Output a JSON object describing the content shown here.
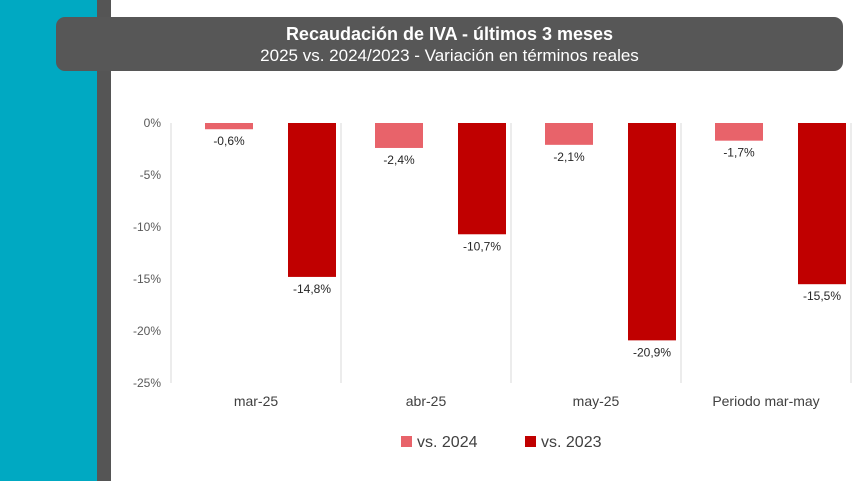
{
  "chart_data": {
    "type": "bar",
    "title": "Recaudación de IVA - últimos 3 meses",
    "subtitle": "2025 vs. 2024/2023 - Variación en términos reales",
    "categories": [
      "mar-25",
      "abr-25",
      "may-25",
      "Periodo mar-may"
    ],
    "series": [
      {
        "name": "vs. 2024",
        "color": "#e8636a",
        "values": [
          -0.6,
          -2.4,
          -2.1,
          -1.7
        ],
        "labels": [
          "-0,6%",
          "-2,4%",
          "-2,1%",
          "-1,7%"
        ]
      },
      {
        "name": "vs. 2023",
        "color": "#c00000",
        "values": [
          -14.8,
          -10.7,
          -20.9,
          -15.5
        ],
        "labels": [
          "-14,8%",
          "-10,7%",
          "-20,9%",
          "-15,5%"
        ]
      }
    ],
    "ylim": [
      -25,
      0
    ],
    "yticks": [
      0,
      -5,
      -10,
      -15,
      -20,
      -25
    ],
    "ytick_labels": [
      "0%",
      "-5%",
      "-10%",
      "-15%",
      "-20%",
      "-25%"
    ],
    "xlabel": "",
    "ylabel": "",
    "legend_position": "bottom",
    "grid": false
  }
}
